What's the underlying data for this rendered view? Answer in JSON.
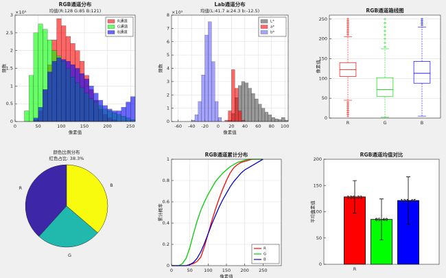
{
  "chart_data": [
    {
      "type": "histogram",
      "title": "RGB通道分布",
      "subtitle": "均值(R:128 G:85 B:121)",
      "xlabel": "像素值",
      "ylabel": "频数",
      "y_multiplier": "×10⁵",
      "bins": [
        0,
        10,
        20,
        30,
        40,
        50,
        60,
        70,
        80,
        90,
        100,
        110,
        120,
        130,
        140,
        150,
        160,
        170,
        180,
        190,
        200,
        210,
        220,
        230,
        240,
        250,
        260
      ],
      "series": [
        {
          "name": "R通道",
          "color": "#ff0000",
          "values": [
            0,
            0,
            0,
            0,
            0.05,
            0.3,
            0.9,
            1.6,
            2.3,
            2.9,
            2.7,
            2.4,
            2.2,
            2.0,
            1.7,
            1.3,
            0.9,
            0.6,
            0.35,
            0.2,
            0.1,
            0.05,
            0,
            0,
            0,
            0
          ]
        },
        {
          "name": "G通道",
          "color": "#00ff00",
          "values": [
            0,
            0,
            0.3,
            1.3,
            2.5,
            2.75,
            2.6,
            2.3,
            2.0,
            1.85,
            1.7,
            1.5,
            1.25,
            1.1,
            0.95,
            0.8,
            0.65,
            0.55,
            0.45,
            0.35,
            0.3,
            0.25,
            0.2,
            0.15,
            0.1,
            0.05
          ]
        },
        {
          "name": "B通道",
          "color": "#0000ff",
          "values": [
            0,
            0,
            0,
            0,
            0.1,
            0.4,
            0.9,
            1.4,
            1.7,
            1.8,
            1.75,
            1.7,
            1.6,
            1.5,
            1.35,
            1.2,
            1.0,
            0.8,
            0.6,
            0.45,
            0.35,
            0.3,
            0.3,
            0.4,
            0.55,
            0.7
          ]
        }
      ],
      "xlim": [
        0,
        260
      ],
      "xticks": [
        0,
        50,
        100,
        150,
        200,
        250
      ],
      "ylim": [
        0,
        3
      ],
      "yticks": [
        0,
        0.5,
        1,
        1.5,
        2,
        2.5,
        3
      ],
      "grid": true,
      "legend": "upper-right"
    },
    {
      "type": "histogram",
      "title": "Lab通道分布",
      "subtitle": "均值(L:41.7 a:24.3 b:-12.5)",
      "xlabel": "像素值",
      "ylabel": "频数",
      "y_multiplier": "×10⁵",
      "bins": [
        -40,
        -35,
        -30,
        -25,
        -20,
        -15,
        -10,
        -5,
        0,
        5,
        10,
        15,
        20,
        25,
        30,
        35,
        40,
        45,
        50,
        55,
        60,
        65,
        70,
        75,
        80,
        85,
        90,
        95,
        100,
        105
      ],
      "series": [
        {
          "name": "L*",
          "color": "#555555",
          "values": [
            0,
            0,
            0,
            0,
            0,
            0,
            0,
            0,
            0,
            0,
            0,
            0.1,
            0.6,
            1.8,
            2.7,
            3.0,
            2.9,
            2.5,
            2.1,
            1.7,
            1.3,
            1.0,
            0.7,
            0.5,
            0.3,
            0.2,
            0.15,
            0.3,
            0.1
          ]
        },
        {
          "name": "a*",
          "color": "#ff0000",
          "values": [
            0,
            0,
            0,
            0,
            0,
            0,
            0,
            0,
            0,
            0,
            0.1,
            0.8,
            3.9,
            2.5,
            0.8,
            0.1,
            0,
            0,
            0,
            0,
            0,
            0,
            0,
            0,
            0,
            0,
            0,
            0,
            0
          ]
        },
        {
          "name": "b*",
          "color": "#6666ff",
          "values": [
            0.1,
            0.5,
            1.5,
            3.5,
            6.5,
            7.5,
            4.5,
            1.5,
            0.3,
            0,
            0,
            0,
            0,
            0,
            0,
            0,
            0,
            0,
            0,
            0,
            0,
            0,
            0,
            0,
            0,
            0,
            0,
            0,
            0
          ]
        }
      ],
      "xlim": [
        -70,
        105
      ],
      "xticks": [
        -60,
        -40,
        -20,
        0,
        20,
        40,
        60,
        80,
        100
      ],
      "ylim": [
        0,
        8
      ],
      "yticks": [
        0,
        1,
        2,
        3,
        4,
        5,
        6,
        7,
        8
      ],
      "grid": true,
      "legend": "upper-right"
    },
    {
      "type": "box",
      "title": "RGB通道箱线图",
      "ylabel": "像素值",
      "categories": [
        "R",
        "G",
        "B"
      ],
      "boxes": [
        {
          "color": "#ff0000",
          "whislo": 45,
          "q1": 105,
          "med": 122,
          "q3": 140,
          "whishi": 205,
          "outliers": [
            5,
            10,
            15,
            20,
            25,
            30,
            35,
            40,
            210,
            215,
            220,
            225,
            230,
            235,
            240,
            245,
            250
          ]
        },
        {
          "color": "#00dd00",
          "whislo": 2,
          "q1": 55,
          "med": 72,
          "q3": 102,
          "whishi": 175,
          "outliers": [
            180,
            190,
            200,
            210,
            220,
            230,
            240,
            250
          ]
        },
        {
          "color": "#0000ff",
          "whislo": 5,
          "q1": 88,
          "med": 113,
          "q3": 143,
          "whishi": 230,
          "outliers": [
            235,
            240,
            245,
            250
          ]
        }
      ],
      "ylim": [
        0,
        260
      ],
      "yticks": [
        0,
        50,
        100,
        150,
        200,
        250
      ],
      "grid": true
    },
    {
      "type": "pie",
      "title": "颜色比例分布",
      "subtitle": "红色占比: 38.3%",
      "labels": [
        "R",
        "G",
        "B"
      ],
      "values": [
        38.3,
        25.4,
        36.3
      ],
      "colors": [
        "#3e26a8",
        "#21b8ae",
        "#f9fb0e"
      ]
    },
    {
      "type": "line",
      "title": "RGB通道累计分布",
      "xlabel": "像素值",
      "ylabel": "累计概率",
      "x": [
        0,
        10,
        20,
        30,
        40,
        50,
        60,
        70,
        80,
        90,
        100,
        110,
        120,
        130,
        140,
        150,
        160,
        170,
        180,
        190,
        200,
        210,
        220,
        230,
        240,
        250
      ],
      "series": [
        {
          "name": "R",
          "color": "#ff0000",
          "values": [
            0,
            0,
            0,
            0,
            0,
            0.01,
            0.02,
            0.04,
            0.08,
            0.18,
            0.3,
            0.42,
            0.53,
            0.63,
            0.72,
            0.8,
            0.87,
            0.92,
            0.95,
            0.97,
            0.98,
            0.99,
            1,
            1,
            1,
            1
          ]
        },
        {
          "name": "G",
          "color": "#00cc00",
          "values": [
            0,
            0,
            0,
            0.02,
            0.07,
            0.17,
            0.3,
            0.42,
            0.52,
            0.6,
            0.67,
            0.73,
            0.79,
            0.83,
            0.87,
            0.9,
            0.93,
            0.95,
            0.97,
            0.98,
            0.99,
            1,
            1,
            1,
            1,
            1
          ]
        },
        {
          "name": "B",
          "color": "#0000cc",
          "values": [
            0,
            0,
            0,
            0,
            0,
            0.01,
            0.03,
            0.07,
            0.13,
            0.21,
            0.3,
            0.39,
            0.47,
            0.55,
            0.62,
            0.68,
            0.74,
            0.79,
            0.83,
            0.87,
            0.9,
            0.92,
            0.94,
            0.96,
            0.98,
            1
          ]
        }
      ],
      "xlim": [
        0,
        300
      ],
      "xticks": [
        0,
        50,
        100,
        150,
        200,
        250
      ],
      "ylim": [
        0,
        1
      ],
      "yticks": [
        0,
        0.2,
        0.4,
        0.6,
        0.8,
        1
      ],
      "grid": true,
      "legend": "lower-right"
    },
    {
      "type": "bar",
      "title": "RGB通道均值对比",
      "ylabel": "平均像素值",
      "categories": [
        "R",
        null,
        null
      ],
      "values": [
        128.31,
        85.4,
        121.45
      ],
      "value_labels": [
        "128.31",
        "85.40",
        "121.45"
      ],
      "errors": [
        31,
        39,
        45
      ],
      "colors": [
        "#ff0000",
        "#00ff00",
        "#0000ff"
      ],
      "ylim": [
        0,
        200
      ],
      "yticks": [
        0,
        50,
        100,
        150,
        200
      ],
      "grid": false
    }
  ]
}
